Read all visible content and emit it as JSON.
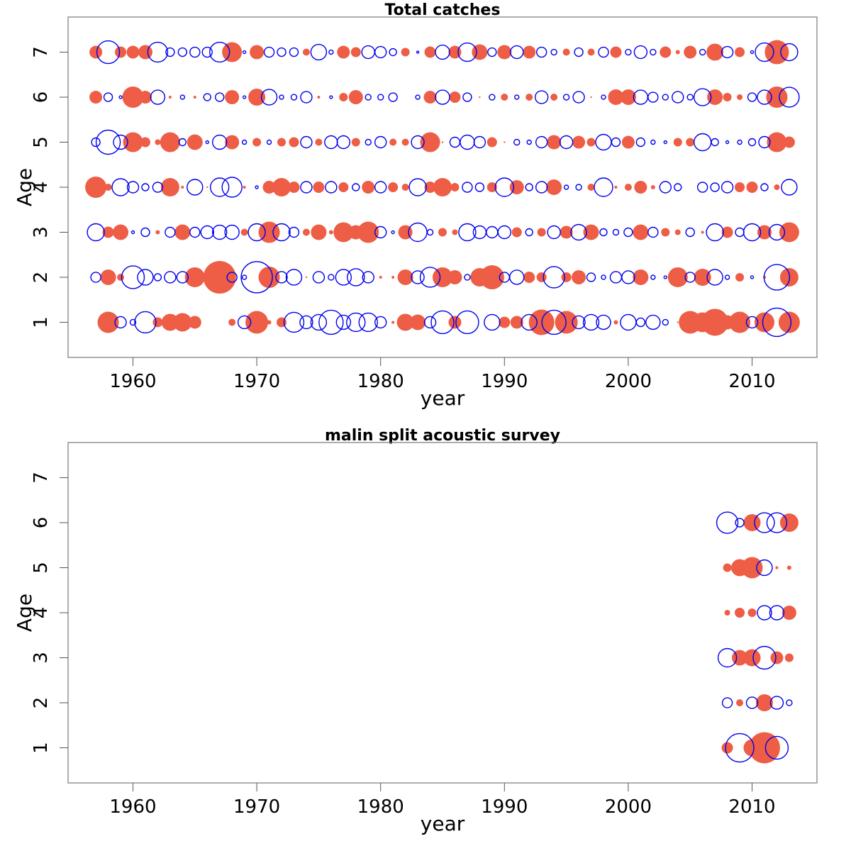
{
  "chart_data": [
    {
      "type": "scatter",
      "subtype": "bubble",
      "title": "Total catches",
      "xlabel": "year",
      "ylabel": "Age",
      "xlim": [
        1954.76,
        2015.24
      ],
      "ylim": [
        0.22,
        7.78
      ],
      "xticks": [
        1960,
        1970,
        1980,
        1990,
        2000,
        2010
      ],
      "yticks": [
        1,
        2,
        3,
        4,
        5,
        6,
        7
      ],
      "grid": false,
      "legend": "none",
      "encoding": "filled = positive residual, open = negative residual; bubble area proportional to |value|",
      "colors": {
        "positive": "#EE5D45",
        "negative": "#0000EE"
      },
      "years": [
        1957,
        1958,
        1959,
        1960,
        1961,
        1962,
        1963,
        1964,
        1965,
        1966,
        1967,
        1968,
        1969,
        1970,
        1971,
        1972,
        1973,
        1974,
        1975,
        1976,
        1977,
        1978,
        1979,
        1980,
        1981,
        1982,
        1983,
        1984,
        1985,
        1986,
        1987,
        1988,
        1989,
        1990,
        1991,
        1992,
        1993,
        1994,
        1995,
        1996,
        1997,
        1998,
        1999,
        2000,
        2001,
        2002,
        2003,
        2004,
        2005,
        2006,
        2007,
        2008,
        2009,
        2010,
        2011,
        2012,
        2013
      ],
      "series": [
        {
          "age": 7,
          "values": [
            0.81,
            -2.56,
            0.64,
            0.81,
            1.0,
            -1.96,
            -0.36,
            -0.36,
            -0.49,
            -0.49,
            -1.96,
            1.96,
            -0.04,
            1.0,
            -0.49,
            -0.36,
            -0.36,
            0.25,
            -1.21,
            -0.09,
            0.81,
            0.49,
            -0.81,
            -0.64,
            -0.25,
            0.36,
            -0.01,
            0.64,
            -1.0,
            0.81,
            -1.69,
            1.21,
            -0.36,
            1.0,
            -0.81,
            0.81,
            -0.49,
            -0.16,
            0.25,
            -0.36,
            0.25,
            -0.49,
            0.64,
            -0.16,
            -0.81,
            -0.16,
            0.64,
            0.09,
            0.81,
            -0.16,
            1.44,
            -0.64,
            0.49,
            -0.04,
            -1.69,
            2.89,
            -1.44
          ]
        },
        {
          "age": 6,
          "values": [
            0.81,
            -0.36,
            -0.04,
            2.25,
            0.81,
            -1.0,
            0.04,
            -0.09,
            0.04,
            -0.25,
            -0.36,
            1.0,
            -0.04,
            1.44,
            -1.21,
            -0.09,
            -0.16,
            -0.64,
            0.04,
            -0.04,
            0.36,
            1.0,
            -0.16,
            -0.16,
            -0.36,
            null,
            -0.09,
            0.81,
            -1.0,
            0.64,
            -0.36,
            0.01,
            -0.16,
            0.25,
            -0.09,
            0.25,
            -0.81,
            0.25,
            -0.16,
            -0.64,
            0.01,
            -0.09,
            1.21,
            1.21,
            -1.0,
            -0.49,
            -0.16,
            -0.64,
            -0.16,
            -1.44,
            1.21,
            0.36,
            0.16,
            -0.36,
            -1.0,
            2.25,
            -1.96
          ]
        },
        {
          "age": 5,
          "values": [
            -0.36,
            -2.89,
            -1.0,
            1.96,
            0.49,
            0.16,
            1.96,
            -0.25,
            1.21,
            -0.04,
            -1.0,
            1.0,
            -0.09,
            0.36,
            -0.09,
            0.36,
            0.49,
            -0.64,
            0.25,
            -0.81,
            -0.81,
            0.36,
            -0.16,
            -0.64,
            0.25,
            0.25,
            -0.81,
            1.96,
            0.01,
            -0.49,
            -1.0,
            -0.64,
            0.49,
            0.01,
            -0.16,
            -0.09,
            -0.64,
            1.0,
            -0.81,
            0.81,
            0.36,
            -1.21,
            -0.36,
            0.81,
            -0.36,
            -0.09,
            -0.04,
            0.36,
            0.36,
            -1.44,
            -0.25,
            -0.04,
            -0.09,
            -0.25,
            -0.64,
            1.96,
            0.64
          ]
        },
        {
          "age": 4,
          "values": [
            2.25,
            0.25,
            -1.44,
            -0.64,
            -0.25,
            -0.49,
            1.69,
            0.04,
            -1.21,
            0.01,
            -1.69,
            -1.96,
            0.04,
            -0.04,
            0.81,
            1.69,
            0.64,
            -0.64,
            0.64,
            -0.64,
            0.49,
            -0.25,
            0.81,
            -0.64,
            0.49,
            0.25,
            -1.44,
            0.64,
            1.69,
            0.36,
            -0.49,
            -0.36,
            0.49,
            -1.69,
            1.0,
            -0.25,
            -0.64,
            1.21,
            -0.09,
            -0.16,
            0.25,
            -1.69,
            0.04,
            0.25,
            0.81,
            0.09,
            -0.64,
            -0.25,
            null,
            -0.49,
            -0.36,
            -0.64,
            0.49,
            0.64,
            -0.25,
            0.16,
            -1.21
          ]
        },
        {
          "age": 3,
          "values": [
            -1.44,
            0.64,
            1.21,
            -0.04,
            -0.36,
            0.09,
            -0.49,
            1.21,
            -0.49,
            -0.81,
            -1.0,
            -1.0,
            0.25,
            -1.44,
            2.25,
            -1.44,
            -0.49,
            0.25,
            1.21,
            0.09,
            1.96,
            1.0,
            2.25,
            -0.64,
            -0.04,
            1.0,
            -1.69,
            -0.16,
            0.36,
            0.16,
            -1.44,
            -0.81,
            -0.64,
            -0.81,
            0.49,
            -0.25,
            0.36,
            -0.81,
            0.81,
            -1.21,
            1.21,
            -0.25,
            -0.16,
            -0.36,
            1.21,
            -0.49,
            0.36,
            0.16,
            -0.36,
            0.04,
            -1.44,
            0.64,
            -0.36,
            -1.44,
            1.0,
            -1.21,
            1.96
          ]
        },
        {
          "age": 2,
          "values": [
            -0.49,
            1.21,
            0.25,
            -2.56,
            -1.21,
            -0.25,
            -0.64,
            -0.64,
            1.96,
            null,
            5.29,
            -0.49,
            -0.09,
            -4.84,
            2.25,
            -0.64,
            -1.21,
            0.01,
            -0.64,
            -0.16,
            -1.21,
            -1.44,
            -0.64,
            0.04,
            0.04,
            1.21,
            -0.81,
            -1.96,
            1.96,
            1.0,
            -0.16,
            1.69,
            2.89,
            -0.49,
            -1.0,
            0.64,
            0.49,
            -2.25,
            0.49,
            1.0,
            -0.36,
            -0.09,
            -0.64,
            -0.81,
            1.21,
            -0.09,
            -0.04,
            1.96,
            -0.49,
            1.44,
            -1.21,
            -0.09,
            0.36,
            -0.04,
            0.04,
            -3.24,
            1.69
          ]
        },
        {
          "age": 1,
          "values": [
            null,
            2.25,
            -0.64,
            -0.16,
            -2.25,
            0.49,
            1.44,
            1.69,
            0.81,
            null,
            null,
            0.25,
            -0.81,
            2.56,
            0.09,
            0.49,
            -1.96,
            -0.81,
            -1.21,
            -2.89,
            -1.0,
            -1.69,
            -1.69,
            -0.64,
            0.04,
            1.44,
            1.21,
            -0.64,
            -2.56,
            0.81,
            -2.56,
            null,
            -1.21,
            0.64,
            0.81,
            -1.21,
            3.24,
            -2.89,
            2.56,
            -0.81,
            -1.21,
            -1.0,
            0.09,
            -1.21,
            -0.36,
            -1.0,
            -0.16,
            0.01,
            2.56,
            1.96,
            3.61,
            1.0,
            2.25,
            -0.64,
            1.96,
            -4.0,
            2.25
          ]
        }
      ]
    },
    {
      "type": "scatter",
      "subtype": "bubble",
      "title": "malin split acoustic survey",
      "xlabel": "year",
      "ylabel": "Age",
      "xlim": [
        1954.76,
        2015.24
      ],
      "ylim": [
        0.22,
        7.78
      ],
      "xticks": [
        1960,
        1970,
        1980,
        1990,
        2000,
        2010
      ],
      "yticks": [
        1,
        2,
        3,
        4,
        5,
        6,
        7
      ],
      "grid": false,
      "legend": "none",
      "encoding": "filled = positive residual, open = negative residual; bubble area proportional to |value|",
      "colors": {
        "positive": "#EE5D45",
        "negative": "#0000EE"
      },
      "years": [
        2008,
        2009,
        2010,
        2011,
        2012,
        2013
      ],
      "series": [
        {
          "age": 7,
          "values": [
            null,
            null,
            null,
            null,
            null,
            null
          ]
        },
        {
          "age": 6,
          "values": [
            -2.25,
            -0.36,
            1.44,
            -1.96,
            -1.96,
            1.69
          ]
        },
        {
          "age": 5,
          "values": [
            0.36,
            1.44,
            2.25,
            -1.21,
            0.04,
            0.09
          ]
        },
        {
          "age": 4,
          "values": [
            0.16,
            0.49,
            0.36,
            -1.0,
            -1.0,
            1.0
          ]
        },
        {
          "age": 3,
          "values": [
            -1.69,
            1.21,
            1.44,
            -2.56,
            0.81,
            0.36
          ]
        },
        {
          "age": 2,
          "values": [
            -0.49,
            0.25,
            -0.64,
            1.44,
            -0.81,
            -0.16
          ]
        },
        {
          "age": 1,
          "values": [
            0.64,
            -4.0,
            1.44,
            4.84,
            -2.56,
            null
          ]
        }
      ]
    }
  ]
}
